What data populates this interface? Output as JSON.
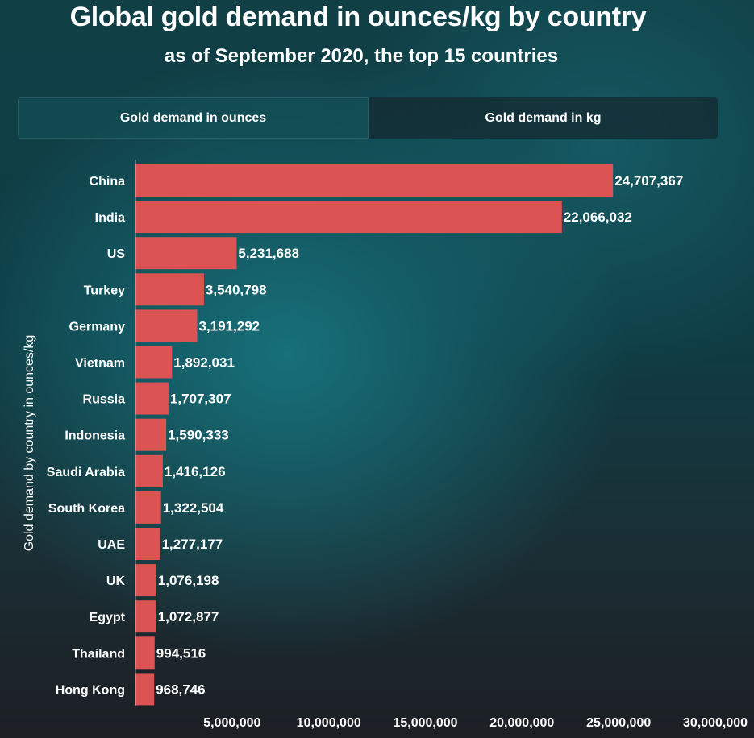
{
  "header": {
    "title": "Global gold demand in ounces/kg by country",
    "subtitle": "as of September 2020, the top 15 countries"
  },
  "tabs": [
    {
      "label": "Gold demand in ounces",
      "active": true
    },
    {
      "label": "Gold demand in kg",
      "active": false
    }
  ],
  "colors": {
    "bar": "#dc5353",
    "text": "#ffffff"
  },
  "chart_data": {
    "type": "bar",
    "orientation": "horizontal",
    "title": "Global gold demand in ounces/kg by country",
    "subtitle": "as of September 2020, the top 15 countries",
    "ylabel": "Gold demand by country in ounces/kg",
    "xlabel": "",
    "categories": [
      "China",
      "India",
      "US",
      "Turkey",
      "Germany",
      "Vietnam",
      "Russia",
      "Indonesia",
      "Saudi Arabia",
      "South Korea",
      "UAE",
      "UK",
      "Egypt",
      "Thailand",
      "Hong Kong"
    ],
    "values": [
      24707367,
      22066032,
      5231688,
      3540798,
      3191292,
      1892031,
      1707307,
      1590333,
      1416126,
      1322504,
      1277177,
      1076198,
      1072877,
      994516,
      968746
    ],
    "value_labels": [
      "24,707,367",
      "22,066,032",
      "5,231,688",
      "3,540,798",
      "3,191,292",
      "1,892,031",
      "1,707,307",
      "1,590,333",
      "1,416,126",
      "1,322,504",
      "1,277,177",
      "1,076,198",
      "1,072,877",
      "994,516",
      "968,746"
    ],
    "x_ticks": [
      5000000,
      10000000,
      15000000,
      20000000,
      25000000,
      30000000
    ],
    "x_tick_labels": [
      "5,000,000",
      "10,000,000",
      "15,000,000",
      "20,000,000",
      "25,000,000",
      "30,000,000"
    ],
    "xlim": [
      0,
      30000000
    ],
    "grid": false,
    "legend": "none"
  }
}
